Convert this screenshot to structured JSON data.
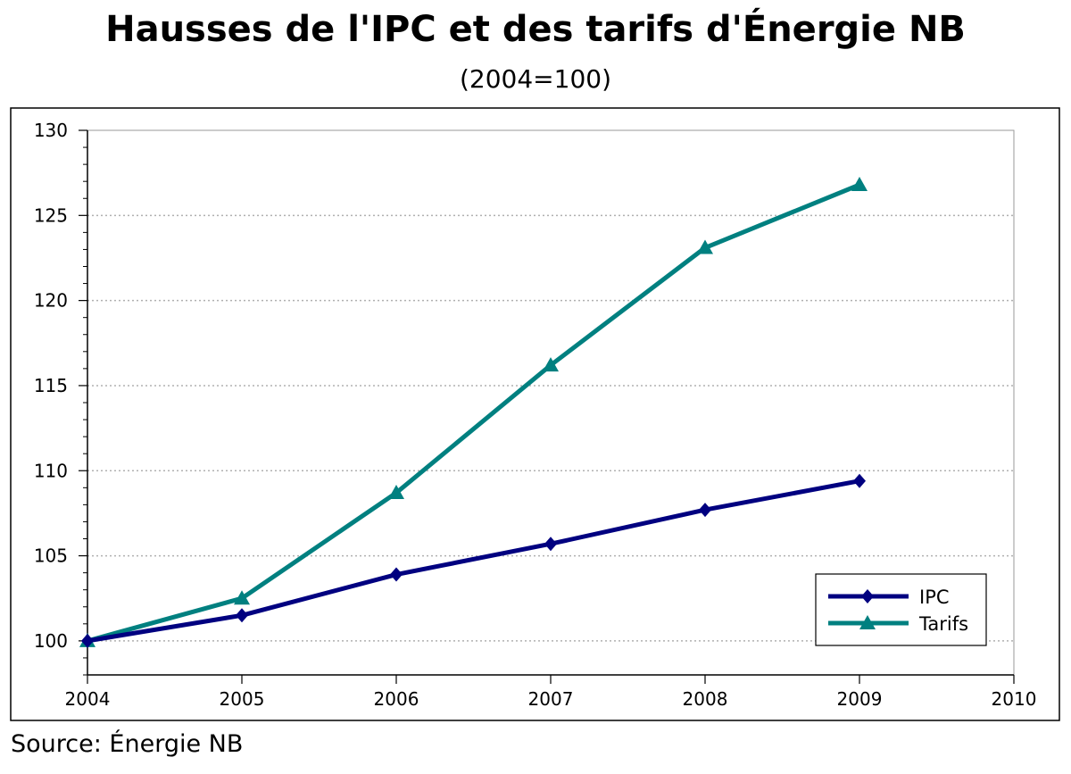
{
  "chart_data": {
    "type": "line",
    "title": "Hausses de l'IPC et des tarifs d'Énergie NB",
    "subtitle": "(2004=100)",
    "x": [
      2004,
      2005,
      2006,
      2007,
      2008,
      2009
    ],
    "xlim": [
      2004,
      2010
    ],
    "xticks": [
      "2004",
      "2005",
      "2006",
      "2007",
      "2008",
      "2009",
      "2010"
    ],
    "ylim": [
      98,
      130
    ],
    "yticks": [
      "100",
      "105",
      "110",
      "115",
      "120",
      "125",
      "130"
    ],
    "grid": "horizontal dotted",
    "legend_position": "bottom-right",
    "series": [
      {
        "name": "IPC",
        "values": [
          100,
          101.5,
          103.9,
          105.7,
          107.7,
          109.4
        ],
        "color": "#000080",
        "marker": "diamond"
      },
      {
        "name": "Tarifs",
        "values": [
          100,
          102.5,
          108.7,
          116.2,
          123.1,
          126.8
        ],
        "color": "#008080",
        "marker": "triangle"
      }
    ],
    "source": "Source: Énergie NB"
  }
}
